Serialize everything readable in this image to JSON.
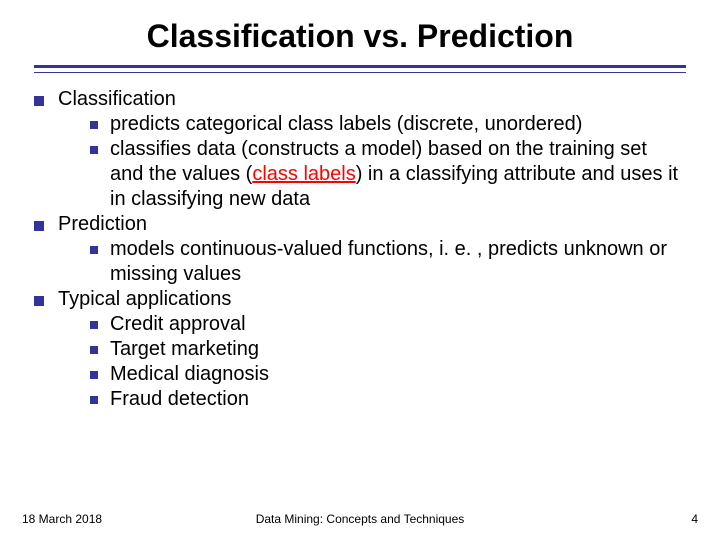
{
  "colors": {
    "background": "#ffffff",
    "text": "#000000",
    "accent": "#333399",
    "highlight": "#ff0000"
  },
  "typography": {
    "title_fontsize": 32,
    "body_fontsize": 20,
    "footer_fontsize": 12,
    "font_family": "Verdana"
  },
  "title": "Classification vs. Prediction",
  "bullets": [
    {
      "label": "Classification",
      "sub": [
        {
          "text": "predicts categorical class labels (discrete, unordered)"
        },
        {
          "html": "classifies data (constructs a model) based on the training set and the values (<span class=\"redu\">class labels</span>) in a classifying attribute and uses it in classifying new data"
        }
      ]
    },
    {
      "label": "Prediction",
      "sub": [
        {
          "text": "models continuous-valued functions, i. e. , predicts unknown or missing values"
        }
      ]
    },
    {
      "label": "Typical applications",
      "sub": [
        {
          "text": "Credit approval"
        },
        {
          "text": "Target marketing"
        },
        {
          "text": "Medical diagnosis"
        },
        {
          "text": "Fraud detection"
        }
      ]
    }
  ],
  "footer": {
    "date": "18 March 2018",
    "center": "Data Mining: Concepts and Techniques",
    "page": "4"
  }
}
